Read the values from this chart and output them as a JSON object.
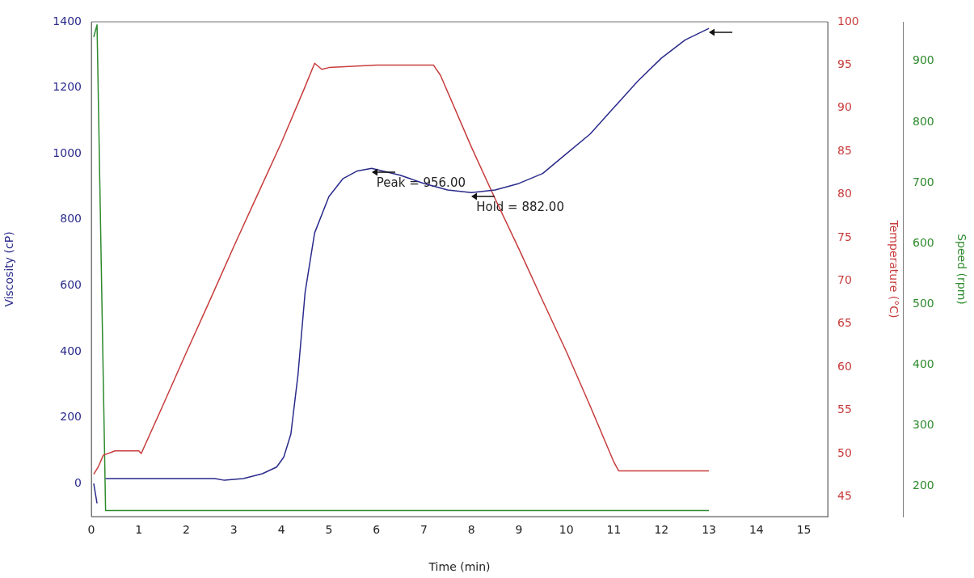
{
  "chart_data": {
    "type": "line",
    "xlabel": "Time (min)",
    "ylabel": "Viscosity (cP)",
    "y2label": "Temperature (°C)",
    "y3label": "Speed (rpm)",
    "xlim": [
      0,
      15.5
    ],
    "xticks": [
      0,
      1,
      2,
      3,
      4,
      5,
      6,
      7,
      8,
      9,
      10,
      11,
      12,
      13,
      14,
      15
    ],
    "ylim": [
      -100,
      1400
    ],
    "yticks": [
      0,
      200,
      400,
      600,
      800,
      1000,
      1200,
      1400
    ],
    "y2lim": [
      42.7,
      100
    ],
    "y2ticks": [
      45,
      50,
      55,
      60,
      65,
      70,
      75,
      80,
      85,
      90,
      95,
      100
    ],
    "y3lim": [
      150,
      965
    ],
    "y3ticks": [
      200,
      300,
      400,
      500,
      600,
      700,
      800,
      900
    ],
    "grid": false,
    "legend": false,
    "series": [
      {
        "color": "#2a2a8c",
        "axis": "y",
        "x": [
          0.05,
          0.12,
          0.18,
          0.27,
          0.3,
          1,
          2,
          2.6,
          2.8,
          3.2,
          3.6,
          3.9,
          4.05,
          4.2,
          4.35,
          4.5,
          4.7,
          5,
          5.3,
          5.6,
          5.9,
          6.5,
          7,
          7.5,
          8,
          8.5,
          9,
          9.5,
          10,
          10.5,
          11,
          11.5,
          12,
          12.5,
          13
        ],
        "values": [
          0,
          -60,
          null,
          null,
          15,
          15,
          15,
          15,
          10,
          15,
          30,
          50,
          80,
          150,
          330,
          580,
          760,
          870,
          925,
          948,
          956,
          935,
          910,
          890,
          882,
          890,
          910,
          940,
          1000,
          1060,
          1140,
          1220,
          1290,
          1345,
          1380
        ]
      },
      {
        "color": "#c83c3c",
        "axis": "y2",
        "x": [
          0.05,
          0.15,
          0.25,
          0.5,
          1,
          1.05,
          1.5,
          2,
          2.5,
          3,
          3.5,
          4,
          4.5,
          4.7,
          4.85,
          5,
          6,
          7,
          7.2,
          7.35,
          8,
          8.5,
          9,
          9.5,
          10,
          10.5,
          11,
          11.1,
          13
        ],
        "values": [
          47.6,
          48.5,
          49.8,
          50.3,
          50.3,
          50,
          55.5,
          61.7,
          67.8,
          74,
          80,
          86,
          92.5,
          95.2,
          94.5,
          94.7,
          95,
          95,
          95,
          93.8,
          85.5,
          79.5,
          73.7,
          67.7,
          61.8,
          55.5,
          49,
          48,
          48
        ]
      },
      {
        "color": "#2e8a2e",
        "axis": "y3",
        "x": [
          0.05,
          0.12,
          0.3,
          13
        ],
        "values": [
          940,
          960,
          160,
          160
        ]
      }
    ],
    "annotations": [
      {
        "text": "Peak = 956.00",
        "x": 5.9,
        "y": 956
      },
      {
        "text": "Hold = 882.00",
        "x": 8,
        "y": 882
      }
    ]
  }
}
